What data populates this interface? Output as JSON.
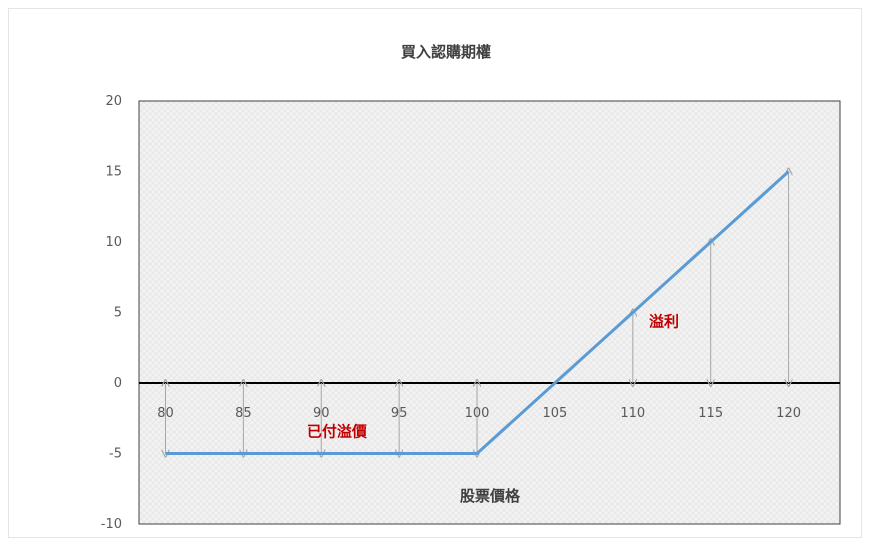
{
  "chart_data": {
    "type": "line",
    "title": "買入認購期權",
    "xlabel": "股票價格",
    "ylabel": "",
    "x": [
      80,
      85,
      90,
      95,
      100,
      105,
      110,
      115,
      120
    ],
    "xtick_labels": [
      "80",
      "85",
      "90",
      "95",
      "100",
      "105",
      "110",
      "115",
      "120"
    ],
    "ylim": [
      -10,
      20
    ],
    "yticks": [
      20,
      15,
      10,
      5,
      0,
      -5,
      -10
    ],
    "ytick_labels": [
      "20",
      "15",
      "10",
      "5",
      "0",
      "-5",
      "-10"
    ],
    "series": [
      {
        "values": [
          -5,
          -5,
          -5,
          -5,
          -5,
          0,
          5,
          10,
          15
        ]
      }
    ],
    "annotations": [
      {
        "text": "已付溢價",
        "x": 91,
        "y": -3.8
      },
      {
        "text": "溢利",
        "x": 112,
        "y": 4
      }
    ],
    "grid": true,
    "colors": {
      "line": "#5b9bd5",
      "zero_axis": "#000000",
      "arrow": "#a6a6a6",
      "annotation": "#c00000",
      "plot_bg": "#f2f2f2"
    }
  }
}
